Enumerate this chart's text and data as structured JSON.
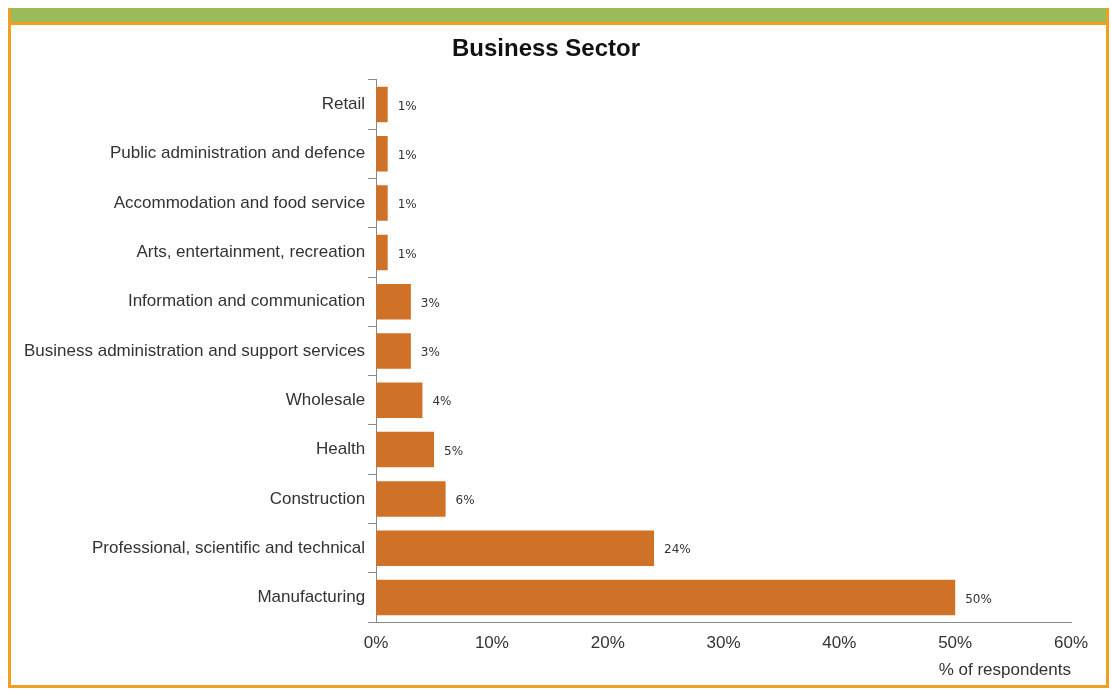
{
  "chart_data": {
    "type": "bar",
    "orientation": "horizontal",
    "title": "Business Sector",
    "xlabel": "% of respondents",
    "categories": [
      "Retail",
      "Public administration and defence",
      "Accommodation and food service",
      "Arts, entertainment, recreation",
      "Information and communication",
      "Business administration and support services",
      "Wholesale",
      "Health",
      "Construction",
      "Professional, scientific and technical",
      "Manufacturing"
    ],
    "values": [
      1,
      1,
      1,
      1,
      3,
      3,
      4,
      5,
      6,
      24,
      50
    ],
    "value_labels": [
      "1%",
      "1%",
      "1%",
      "1%",
      "3%",
      "3%",
      "4%",
      "5%",
      "6%",
      "24%",
      "50%"
    ],
    "color": "#d07128",
    "xlim": [
      0,
      60
    ],
    "xticks": [
      {
        "value": 0,
        "label": "0%"
      },
      {
        "value": 10,
        "label": "10%"
      },
      {
        "value": 20,
        "label": "20%"
      },
      {
        "value": 30,
        "label": "30%"
      },
      {
        "value": 40,
        "label": "40%"
      },
      {
        "value": 50,
        "label": "50%"
      },
      {
        "value": 60,
        "label": "60%"
      }
    ],
    "grid": false,
    "legend": false
  }
}
